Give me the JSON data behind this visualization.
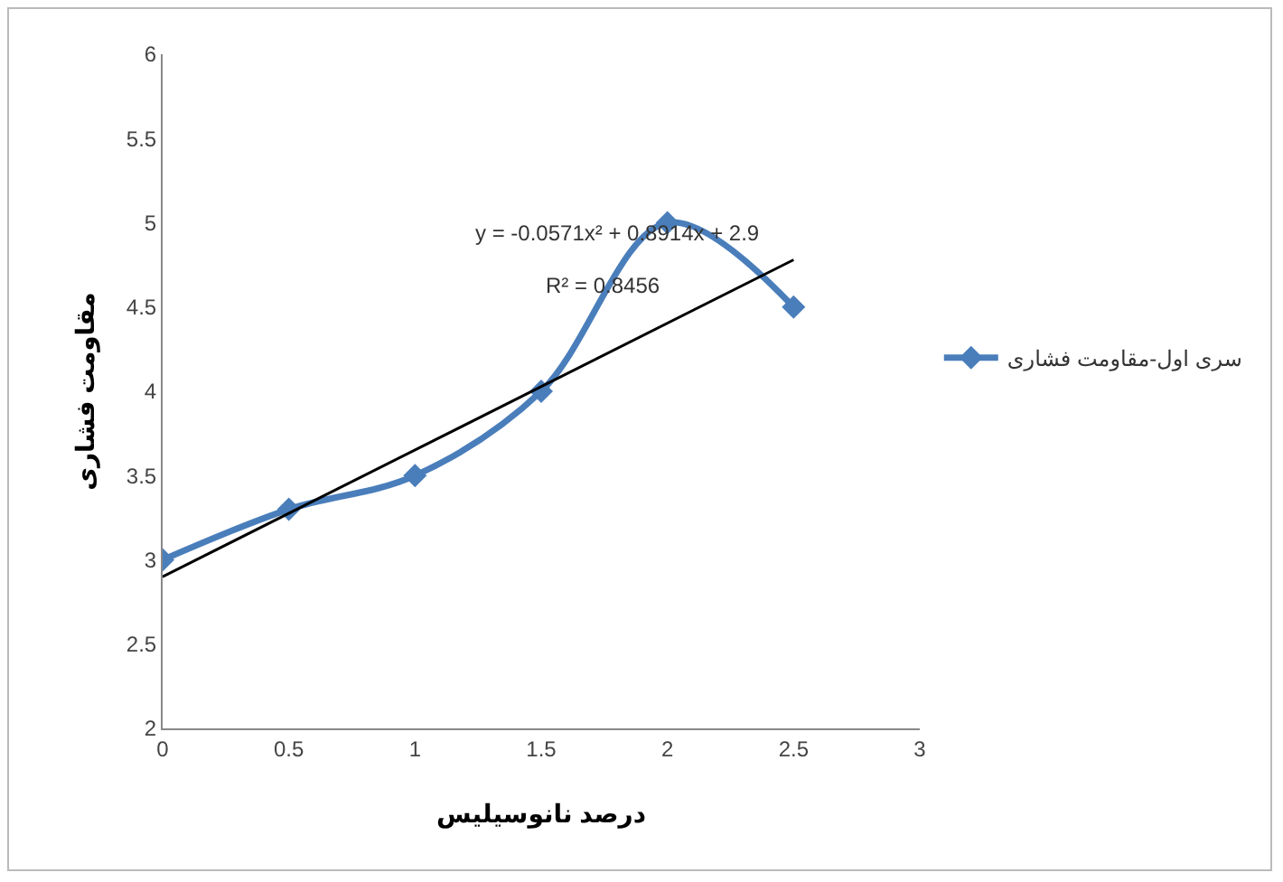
{
  "chart_data": {
    "type": "line",
    "xlabel": "درصد نانوسیلیس",
    "ylabel": "مقاومت فشاری",
    "x": [
      0,
      0.5,
      1,
      1.5,
      2,
      2.5
    ],
    "series": [
      {
        "name": "سری اول-مقاومت فشاری",
        "color": "#4a7ebb",
        "values": [
          3,
          3.3,
          3.5,
          4,
          5,
          4.5
        ],
        "marker": "diamond"
      },
      {
        "type": "line",
        "color": "#000000",
        "x": [
          0,
          2.5
        ],
        "values": [
          2.9,
          4.78
        ],
        "marker": "none"
      }
    ],
    "annotations": [
      "y = -0.0571x² + 0.8914x + 2.9",
      "R² = 0.8456"
    ],
    "xlim": [
      0,
      3
    ],
    "xticks": [
      0,
      0.5,
      1,
      1.5,
      2,
      2.5,
      3
    ],
    "ylim": [
      2,
      6
    ],
    "yticks": [
      2,
      2.5,
      3,
      3.5,
      4,
      4.5,
      5,
      5.5,
      6
    ],
    "grid": false,
    "legend": "right"
  }
}
